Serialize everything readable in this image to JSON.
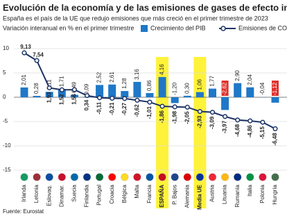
{
  "chart_data": {
    "type": "bar-line",
    "title": "Evolución de la economía y de las emisiones de gases de efecto invernadero",
    "subtitle": "España es el país de la UE que redujo emisiones que más creció en el primer trimestre de 2023",
    "note": "Variación interanual en % en el primer trimestre",
    "source": "Fuente: Eurostat",
    "categories": [
      "Irlanda",
      "Letonia",
      "Eslovaq.",
      "Dinamar.",
      "Suecia",
      "Finlandia",
      "Portugal",
      "Croacia",
      "Bélgica",
      "Malta",
      "Francia",
      "ESPAÑA",
      "P. Bajos",
      "Alemania",
      "Media UE",
      "Austria",
      "Lituania",
      "Rumanía",
      "Italia",
      "Polonia",
      "Hungría"
    ],
    "series": [
      {
        "name": "Crecimiento del PIB",
        "color": "#1f78c8",
        "kind": "bar",
        "values": [
          2.01,
          0.28,
          1.11,
          1.71,
          0.49,
          0.09,
          2.52,
          2.61,
          1.28,
          3.16,
          0.86,
          4.16,
          -1.2,
          0.3,
          1.06,
          1.77,
          -2.62,
          2.9,
          2.04,
          -0.04,
          -1.12
        ],
        "value_labels": [
          "2,01",
          "0,28",
          "1,11",
          "1,71",
          "0,49",
          "0,09",
          "2,52",
          "2,61",
          "1,28",
          "3,16",
          "0,86",
          "4,16",
          "-1,20",
          "0,30",
          "1,06",
          "1,77",
          "-2,62",
          "2,90",
          "2,04",
          "-0,04",
          "-1,12"
        ]
      },
      {
        "name": "Emisiones de CO₂ y equivalentes",
        "color": "#1b3264",
        "kind": "line",
        "values": [
          9.13,
          7.54,
          1.93,
          1.52,
          1.56,
          0.34,
          -0.11,
          -0.21,
          -0.27,
          -0.62,
          -1.01,
          -1.86,
          -1.98,
          -2.05,
          -2.93,
          -3.09,
          -3.97,
          -4.68,
          -4.86,
          -5.15,
          -6.48
        ],
        "value_labels": [
          "9,13",
          "7,54",
          "1,93",
          "1,52",
          "1,56",
          "0,34",
          "-0,11",
          "-0,21",
          "-0,27",
          "-0,62",
          "-1,01",
          "-1,86",
          "-1,98",
          "-2,05",
          "-2,93",
          "-3,09",
          "-3,97",
          "-4,68",
          "-4,86",
          "-5,15",
          "-6,48"
        ]
      }
    ],
    "ylim": [
      -15,
      11
    ],
    "yticks": [
      -15,
      -10,
      -5,
      0,
      5,
      10
    ],
    "grid": true
  }
}
